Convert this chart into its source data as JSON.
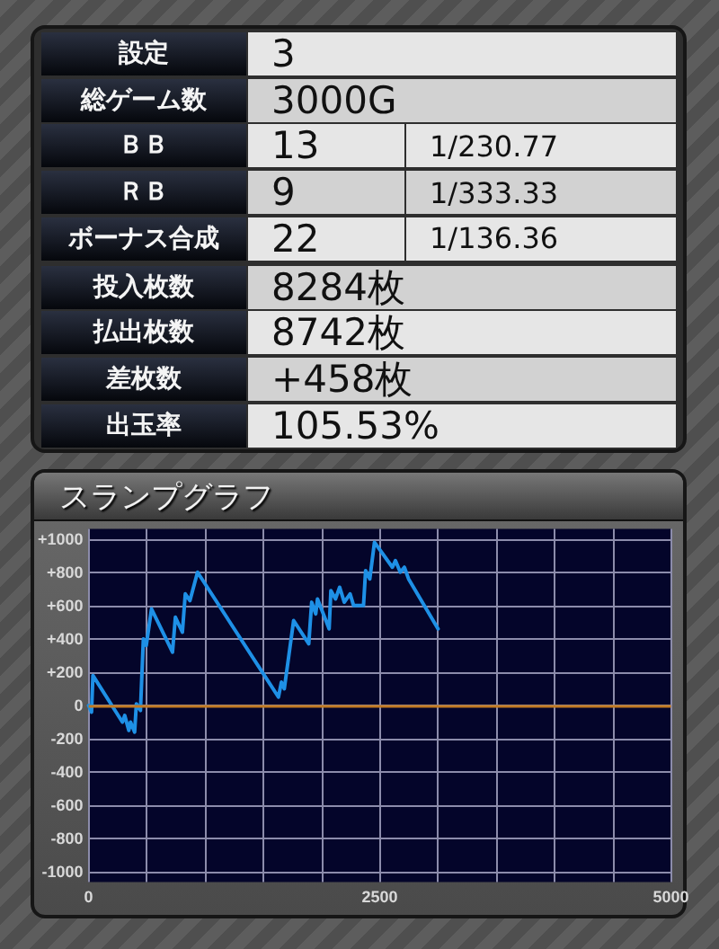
{
  "chart_data": [
    {
      "type": "other",
      "categories": [
        "設定",
        "総ゲーム数",
        "ＢＢ",
        "ＲＢ",
        "ボーナス合成",
        "投入枚数",
        "払出枚数",
        "差枚数",
        "出玉率"
      ],
      "annotations": [
        "3",
        "3000G",
        "13",
        "1/230.77",
        "9",
        "1/333.33",
        "22",
        "1/136.36",
        "8284枚",
        "8742枚",
        "+458枚",
        "105.53%"
      ]
    },
    {
      "type": "line",
      "title": "スランプグラフ",
      "color": "#1e90e6",
      "marker": "none",
      "line_style": "solid",
      "grid": true,
      "x": [
        0,
        25,
        37,
        290,
        310,
        345,
        360,
        395,
        410,
        445,
        470,
        495,
        540,
        720,
        745,
        805,
        830,
        870,
        935,
        1630,
        1655,
        1680,
        1760,
        1890,
        1915,
        1950,
        1965,
        2065,
        2080,
        2120,
        2155,
        2195,
        2245,
        2275,
        2360,
        2378,
        2414,
        2454,
        2608,
        2634,
        2676,
        2711,
        2747,
        3000
      ],
      "values": [
        0,
        -40,
        180,
        -100,
        -60,
        -150,
        -100,
        -160,
        10,
        -30,
        400,
        360,
        580,
        320,
        530,
        440,
        670,
        630,
        800,
        50,
        140,
        100,
        510,
        370,
        620,
        550,
        640,
        460,
        690,
        640,
        710,
        620,
        670,
        600,
        600,
        810,
        760,
        980,
        830,
        870,
        800,
        830,
        760,
        460
      ],
      "xlim": [
        0,
        5000
      ],
      "xticks": [
        0,
        {
          "value": 500,
          "label": null
        },
        {
          "value": 1000,
          "label": null
        },
        {
          "value": 1500,
          "label": null
        },
        {
          "value": 2000,
          "label": null
        },
        2500,
        {
          "value": 3000,
          "label": null
        },
        {
          "value": 3500,
          "label": null
        },
        {
          "value": 4000,
          "label": null
        },
        {
          "value": 4500,
          "label": null
        },
        5000
      ],
      "ylim": [
        -1060,
        1060
      ],
      "yticks": [
        -1000,
        -800,
        -600,
        -400,
        -200,
        0,
        {
          "value": 200,
          "label": "+200"
        },
        {
          "value": 400,
          "label": "+400"
        },
        {
          "value": 600,
          "label": "+600"
        },
        {
          "value": 800,
          "label": "+800"
        },
        {
          "value": 1000,
          "label": "+1000"
        }
      ],
      "ref_lines": [
        {
          "axis": "y",
          "value": 0,
          "color": "#c27a22"
        }
      ]
    }
  ]
}
